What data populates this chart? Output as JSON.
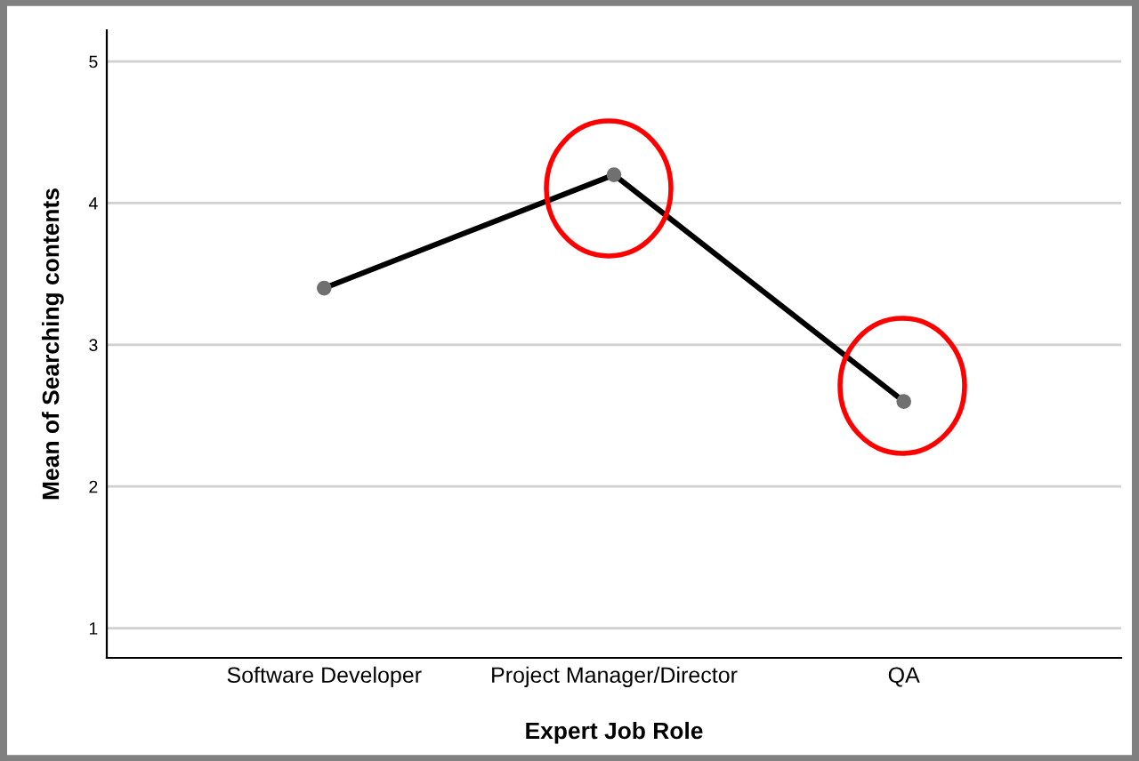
{
  "chart_data": {
    "type": "line",
    "xlabel": "Expert Job Role",
    "ylabel": "Mean of Searching contents",
    "categories": [
      "Software Developer",
      "Project Manager/Director",
      "QA"
    ],
    "series": [
      {
        "color": "#000000",
        "values": [
          3.4,
          4.2,
          2.6
        ]
      }
    ],
    "ylim": [
      0.79,
      5.22
    ],
    "yticks": [
      1,
      2,
      3,
      4,
      5
    ],
    "grid": "y",
    "marker": "circle",
    "line_style": "solid",
    "legend": false
  }
}
